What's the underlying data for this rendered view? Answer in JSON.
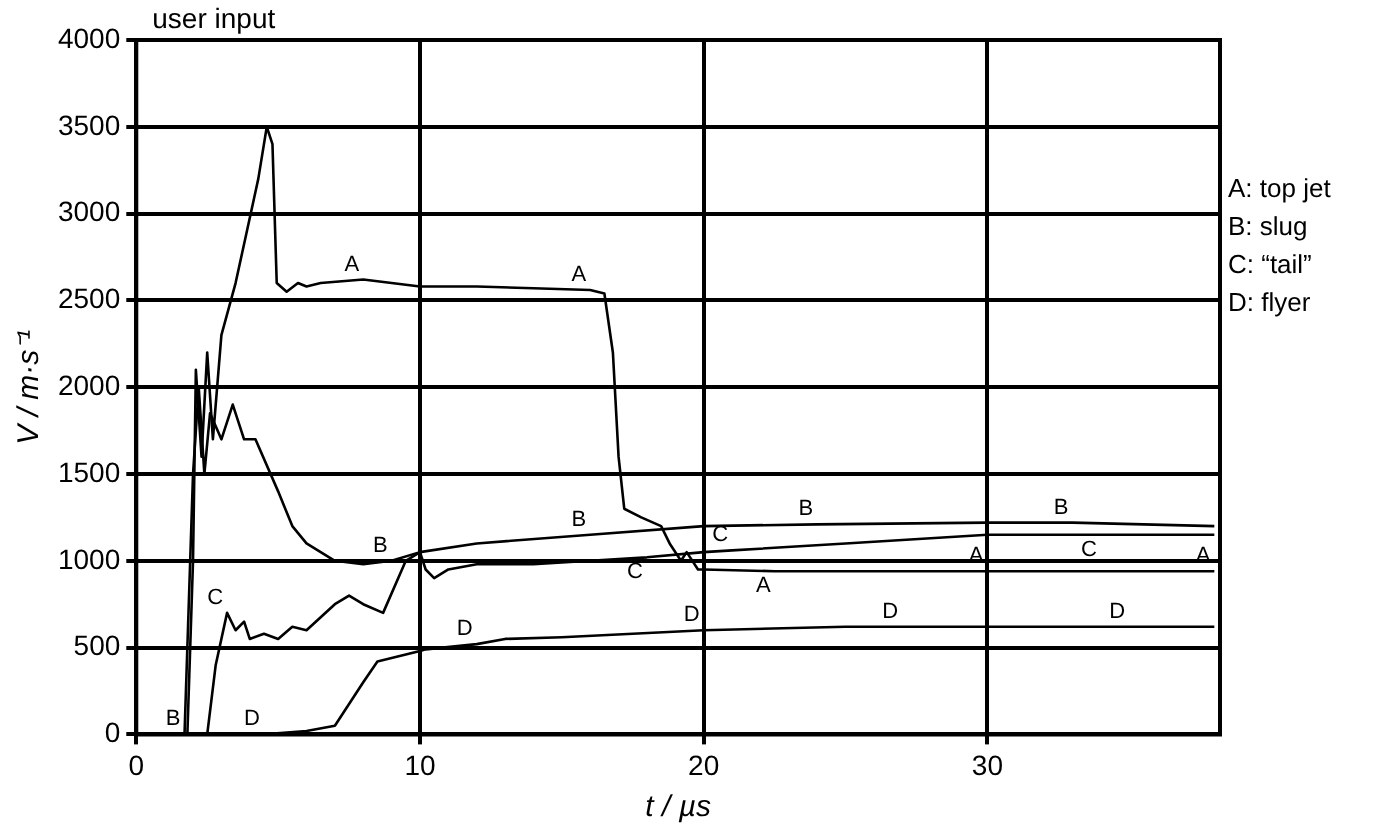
{
  "chart_data": {
    "type": "line",
    "title": "user input",
    "xlabel": "t / µs",
    "ylabel": "V / m·s⁻¹",
    "xlim": [
      0,
      38.2
    ],
    "xticks": [
      0,
      10,
      20,
      30
    ],
    "ylim": [
      0,
      4000
    ],
    "yticks": [
      0,
      500,
      1000,
      1500,
      2000,
      2500,
      3000,
      3500,
      4000
    ],
    "grid": true,
    "marker": "none",
    "line_style": "solid",
    "series": [
      {
        "color": "#000000",
        "x": [
          1.8,
          2.0,
          2.1,
          2.3,
          2.5,
          2.7,
          3.0,
          3.5,
          3.9,
          4.3,
          4.6,
          4.8,
          4.95,
          5.3,
          5.7,
          6,
          6.5,
          8,
          10,
          12,
          14,
          16,
          16.5,
          16.8,
          17,
          17.2,
          17.8,
          18.5,
          18.8,
          19.2,
          19.4,
          19.8,
          20,
          22.5,
          25,
          30,
          38
        ],
        "values": [
          0,
          1000,
          2100,
          1600,
          2200,
          1700,
          2300,
          2600,
          2900,
          3200,
          3500,
          3400,
          2600,
          2550,
          2600,
          2580,
          2600,
          2620,
          2580,
          2580,
          2570,
          2560,
          2540,
          2200,
          1600,
          1300,
          1250,
          1200,
          1100,
          1000,
          1050,
          950,
          950,
          940,
          940,
          940,
          940
        ]
      },
      {
        "color": "#000000",
        "x": [
          1.7,
          2.0,
          2.2,
          2.4,
          2.6,
          3.0,
          3.4,
          3.8,
          4.2,
          5,
          5.5,
          6,
          7,
          8,
          9,
          10,
          12,
          16,
          20,
          24,
          30,
          33,
          38
        ],
        "values": [
          0,
          1500,
          2000,
          1500,
          1850,
          1700,
          1900,
          1700,
          1700,
          1400,
          1200,
          1100,
          1000,
          980,
          1000,
          1050,
          1100,
          1150,
          1200,
          1210,
          1220,
          1220,
          1200
        ]
      },
      {
        "color": "#000000",
        "x": [
          2.5,
          2.8,
          3.2,
          3.5,
          3.8,
          4,
          4.5,
          5,
          5.5,
          6,
          7,
          7.5,
          8,
          8.7,
          9.5,
          10,
          10.2,
          10.5,
          11,
          12,
          14,
          16,
          18,
          20,
          21,
          25,
          30,
          34,
          38
        ],
        "values": [
          0,
          400,
          700,
          600,
          650,
          550,
          580,
          550,
          620,
          600,
          750,
          800,
          750,
          700,
          1000,
          1050,
          950,
          900,
          950,
          980,
          980,
          1000,
          1020,
          1050,
          1060,
          1100,
          1150,
          1150,
          1150
        ]
      },
      {
        "color": "#000000",
        "x": [
          4.5,
          6,
          7,
          8,
          8.5,
          10,
          10.2,
          12,
          13,
          15,
          20,
          25,
          27,
          35,
          38
        ],
        "values": [
          0,
          20,
          50,
          300,
          420,
          480,
          490,
          520,
          550,
          560,
          600,
          620,
          620,
          620,
          620
        ]
      }
    ],
    "annotations": [
      {
        "text": "A",
        "x": 8,
        "y": 2620
      },
      {
        "text": "A",
        "x": 16,
        "y": 2560
      },
      {
        "text": "A",
        "x": 22.5,
        "y": 940
      },
      {
        "text": "A",
        "x": 30,
        "y": 940
      },
      {
        "text": "A",
        "x": 38,
        "y": 940
      },
      {
        "text": "B",
        "x": 1.7,
        "y": 0
      },
      {
        "text": "B",
        "x": 9,
        "y": 1000
      },
      {
        "text": "B",
        "x": 16,
        "y": 1150
      },
      {
        "text": "B",
        "x": 24,
        "y": 1210
      },
      {
        "text": "B",
        "x": 33,
        "y": 1220
      },
      {
        "text": "C",
        "x": 3.2,
        "y": 700
      },
      {
        "text": "C",
        "x": 18,
        "y": 1020
      },
      {
        "text": "C",
        "x": 21,
        "y": 1060
      },
      {
        "text": "C",
        "x": 34,
        "y": 1150
      },
      {
        "text": "D",
        "x": 4.5,
        "y": 0
      },
      {
        "text": "D",
        "x": 12,
        "y": 520
      },
      {
        "text": "D",
        "x": 20,
        "y": 600
      },
      {
        "text": "D",
        "x": 27,
        "y": 620
      },
      {
        "text": "D",
        "x": 35,
        "y": 620
      },
      "A: top jet",
      "B: slug",
      "C: “tail”",
      "D: flyer"
    ]
  }
}
